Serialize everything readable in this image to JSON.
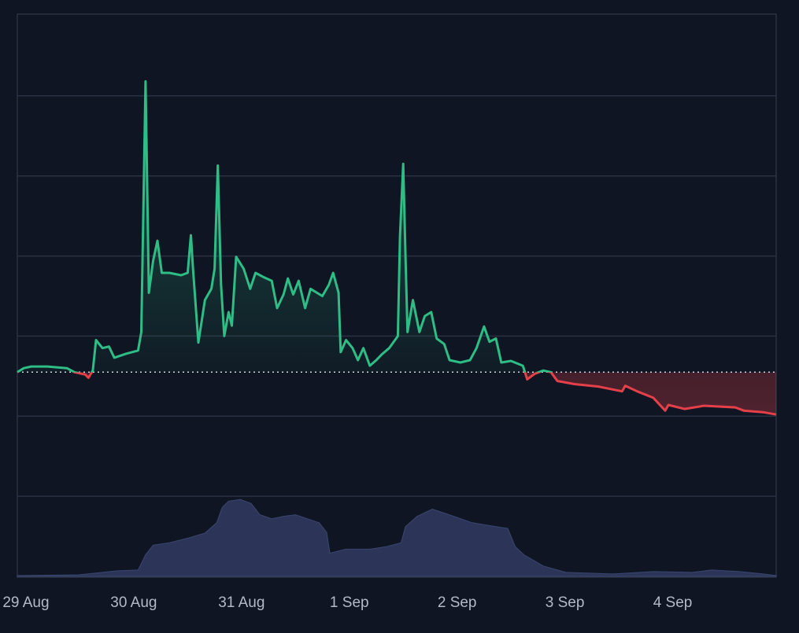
{
  "chart_data": {
    "type": "line",
    "xlim": [
      -0.08,
      6.96
    ],
    "xticks": [
      {
        "value": 0,
        "label": "29 Aug"
      },
      {
        "value": 1,
        "label": "30 Aug"
      },
      {
        "value": 2,
        "label": "31 Aug"
      },
      {
        "value": 3,
        "label": "1 Sep"
      },
      {
        "value": 4,
        "label": "2 Sep"
      },
      {
        "value": 5,
        "label": "3 Sep"
      },
      {
        "value": 6,
        "label": "4 Sep"
      }
    ],
    "ylim": [
      -1,
      6
    ],
    "yticks": [
      0,
      1,
      2,
      3,
      4,
      5
    ],
    "y2lim": [
      0,
      70
    ],
    "grid": true,
    "baseline": 1.55,
    "up_color": "#2ebd85",
    "down_color": "#e5404a",
    "series": [
      {
        "color": "#2ebd85",
        "x": [
          -0.08,
          -0.02,
          0.05,
          0.2,
          0.38,
          0.45,
          0.55,
          0.58,
          0.62,
          0.65,
          0.71,
          0.77,
          0.82,
          0.93,
          1.04,
          1.07,
          1.11,
          1.14,
          1.18,
          1.22,
          1.26,
          1.33,
          1.44,
          1.5,
          1.53,
          1.55,
          1.6,
          1.66,
          1.72,
          1.75,
          1.78,
          1.81,
          1.84,
          1.88,
          1.91,
          1.95,
          2.02,
          2.08,
          2.13,
          2.2,
          2.28,
          2.33,
          2.39,
          2.43,
          2.48,
          2.53,
          2.59,
          2.64,
          2.75,
          2.81,
          2.85,
          2.9,
          2.92,
          2.97,
          3.03,
          3.08,
          3.13,
          3.19,
          3.25,
          3.3,
          3.37,
          3.45,
          3.47,
          3.5,
          3.52,
          3.54,
          3.59,
          3.65,
          3.7,
          3.76,
          3.81,
          3.88,
          3.93,
          4.03,
          4.12,
          4.18,
          4.25,
          4.3,
          4.36,
          4.41,
          4.5,
          4.61,
          4.65,
          4.72,
          4.8,
          4.87,
          4.93,
          5.09,
          5.31,
          5.53,
          5.56,
          5.67,
          5.82,
          5.93,
          5.96,
          6.11,
          6.29,
          6.58,
          6.66,
          6.84,
          6.96
        ],
        "values": [
          1.55,
          1.6,
          1.62,
          1.62,
          1.6,
          1.55,
          1.52,
          1.48,
          1.57,
          1.95,
          1.85,
          1.87,
          1.73,
          1.78,
          1.82,
          2.05,
          5.18,
          2.54,
          2.94,
          3.19,
          2.79,
          2.79,
          2.76,
          2.79,
          3.26,
          2.84,
          1.92,
          2.45,
          2.59,
          2.84,
          4.13,
          2.64,
          2.0,
          2.3,
          2.13,
          2.99,
          2.84,
          2.59,
          2.79,
          2.74,
          2.69,
          2.35,
          2.52,
          2.72,
          2.52,
          2.69,
          2.35,
          2.59,
          2.5,
          2.64,
          2.79,
          2.54,
          1.8,
          1.95,
          1.85,
          1.7,
          1.85,
          1.63,
          1.7,
          1.77,
          1.85,
          2.0,
          3.24,
          4.15,
          3.04,
          2.05,
          2.45,
          2.05,
          2.25,
          2.3,
          1.97,
          1.9,
          1.7,
          1.67,
          1.7,
          1.85,
          2.12,
          1.93,
          1.97,
          1.67,
          1.69,
          1.63,
          1.46,
          1.53,
          1.57,
          1.55,
          1.44,
          1.4,
          1.37,
          1.31,
          1.38,
          1.31,
          1.23,
          1.07,
          1.14,
          1.09,
          1.13,
          1.11,
          1.07,
          1.05,
          1.02
        ]
      },
      {
        "color": "#2c3558",
        "axis": "y2",
        "x": [
          -0.08,
          0.49,
          0.71,
          0.85,
          1.04,
          1.11,
          1.18,
          1.33,
          1.51,
          1.66,
          1.77,
          1.82,
          1.88,
          1.99,
          2.09,
          2.17,
          2.28,
          2.39,
          2.5,
          2.61,
          2.72,
          2.79,
          2.82,
          2.97,
          3.19,
          3.34,
          3.48,
          3.52,
          3.63,
          3.77,
          3.88,
          3.99,
          4.14,
          4.36,
          4.47,
          4.54,
          4.62,
          4.8,
          5.01,
          5.45,
          5.82,
          6.18,
          6.36,
          6.62,
          6.84,
          6.96
        ],
        "values": [
          0.1,
          0.2,
          0.5,
          0.7,
          0.8,
          2.7,
          3.9,
          4.2,
          4.8,
          5.4,
          6.7,
          8.6,
          9.4,
          9.6,
          9.1,
          7.7,
          7.2,
          7.5,
          7.7,
          7.2,
          6.7,
          5.5,
          2.9,
          3.4,
          3.4,
          3.7,
          4.2,
          6.2,
          7.5,
          8.4,
          7.9,
          7.4,
          6.7,
          6.2,
          6.0,
          3.7,
          2.7,
          1.3,
          0.5,
          0.3,
          0.6,
          0.5,
          0.8,
          0.6,
          0.3,
          0.1
        ]
      }
    ]
  }
}
